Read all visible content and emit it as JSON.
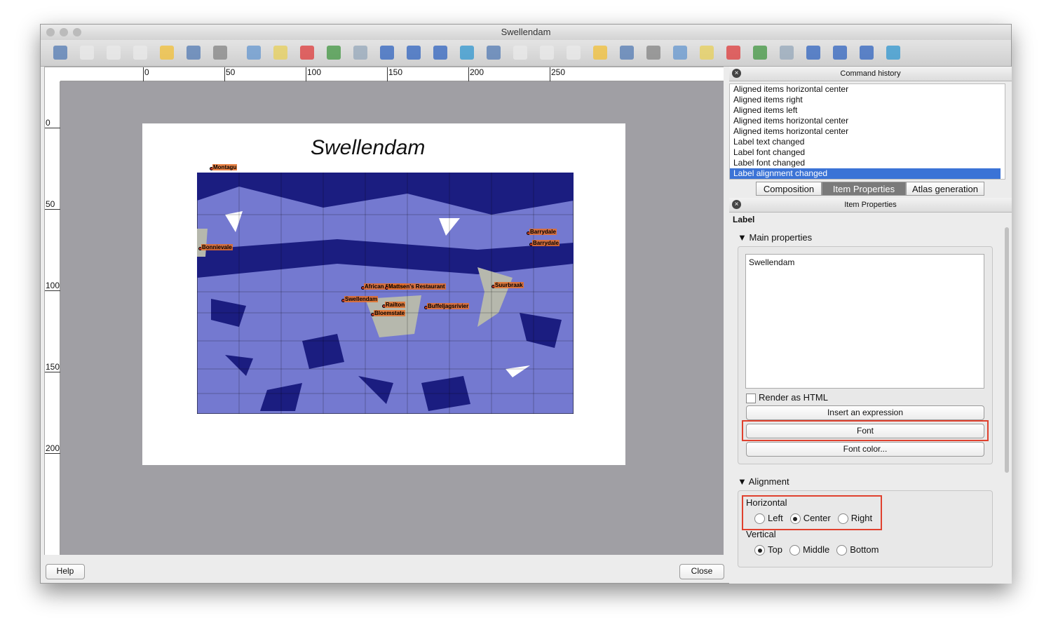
{
  "window": {
    "title": "Swellendam"
  },
  "ruler": {
    "top": [
      "0",
      "50",
      "100",
      "150",
      "200",
      "250"
    ],
    "left": [
      "0",
      "50",
      "100",
      "150",
      "200"
    ]
  },
  "composition": {
    "title": "Swellendam",
    "map_labels": [
      "Montagu",
      "Bonnievale",
      "Barrydale",
      "Barrydale",
      "Suurbraak",
      "African Shades",
      "Mattsen's Restaurant",
      "Swellendam",
      "Railton",
      "Bloemstate",
      "Buffeljagsrivier"
    ]
  },
  "buttons": {
    "help": "Help",
    "close": "Close"
  },
  "command_history": {
    "title": "Command history",
    "items": [
      "Aligned items horizontal center",
      "Aligned items right",
      "Aligned items left",
      "Aligned items horizontal center",
      "Aligned items horizontal center",
      "Label text changed",
      "Label font changed",
      "Label font changed",
      "Label alignment changed"
    ],
    "selected": 8
  },
  "tabs": [
    "Composition",
    "Item Properties",
    "Atlas generation"
  ],
  "active_tab": 1,
  "item_properties": {
    "title": "Item Properties",
    "item": "Label",
    "main": {
      "title": "Main properties",
      "text": "Swellendam",
      "render_html": "Render as HTML",
      "insert_expression": "Insert an expression",
      "font": "Font",
      "font_color": "Font color..."
    },
    "alignment": {
      "title": "Alignment",
      "horizontal": {
        "title": "Horizontal",
        "options": [
          {
            "label": "Left",
            "checked": false
          },
          {
            "label": "Center",
            "checked": true
          },
          {
            "label": "Right",
            "checked": false
          }
        ]
      },
      "vertical": {
        "title": "Vertical",
        "options": [
          {
            "label": "Top",
            "checked": true
          },
          {
            "label": "Middle",
            "checked": false
          },
          {
            "label": "Bottom",
            "checked": false
          }
        ]
      }
    }
  }
}
